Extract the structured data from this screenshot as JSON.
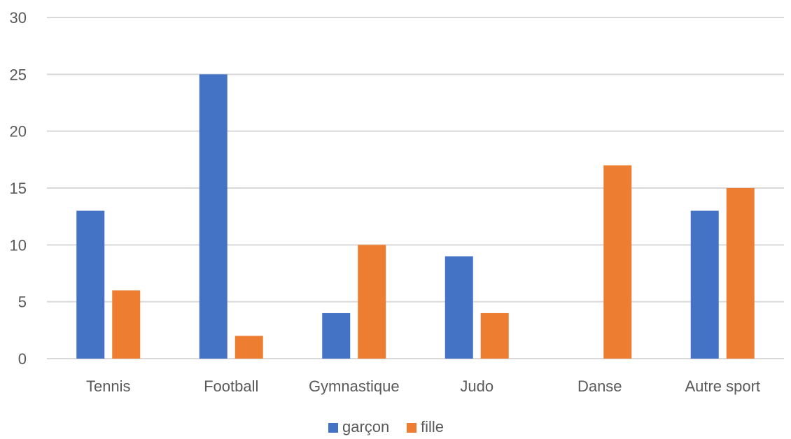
{
  "chart_data": {
    "type": "bar",
    "title": "",
    "xlabel": "",
    "ylabel": "",
    "categories": [
      "Tennis",
      "Football",
      "Gymnastique",
      "Judo",
      "Danse",
      "Autre sport"
    ],
    "series": [
      {
        "name": "garçon",
        "color": "#4472C4",
        "values": [
          13,
          25,
          4,
          9,
          0,
          13
        ]
      },
      {
        "name": "fille",
        "color": "#ED7D31",
        "values": [
          6,
          2,
          10,
          4,
          17,
          15
        ]
      }
    ],
    "ylim": [
      0,
      30
    ],
    "yticks": [
      "0",
      "5",
      "10",
      "15",
      "20",
      "25",
      "30"
    ],
    "grid": true,
    "legend_position": "bottom"
  }
}
